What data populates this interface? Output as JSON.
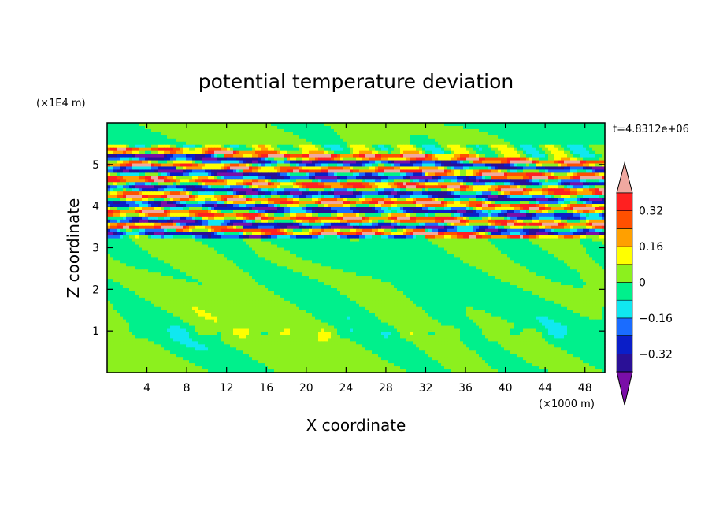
{
  "chart_data": {
    "type": "heatmap",
    "title": "potential temperature deviation",
    "xlabel": "X coordinate",
    "ylabel": "Z coordinate",
    "x_unit_label": "(×1000 m)",
    "y_unit_label": "(×1E4 m)",
    "time_label": "t=4.8312e+06",
    "xlim": [
      0,
      50
    ],
    "ylim": [
      0,
      6
    ],
    "x_ticks": [
      4,
      8,
      12,
      16,
      20,
      24,
      28,
      32,
      36,
      40,
      44,
      48
    ],
    "x_tick_labels": [
      "4",
      "8",
      "12",
      "16",
      "20",
      "24",
      "28",
      "32",
      "36",
      "40",
      "44",
      "48"
    ],
    "y_ticks": [
      1,
      2,
      3,
      4,
      5
    ],
    "y_tick_labels": [
      "1",
      "2",
      "3",
      "4",
      "5"
    ],
    "colorbar": {
      "levels": [
        -0.4,
        -0.32,
        -0.24,
        -0.16,
        -0.08,
        0,
        0.08,
        0.16,
        0.24,
        0.32,
        0.4
      ],
      "tick_values": [
        -0.32,
        -0.16,
        0,
        0.16,
        0.32
      ],
      "tick_labels": [
        "−0.32",
        "−0.16",
        "0",
        "0.16",
        "0.32"
      ],
      "colors": [
        "#7a0ea8",
        "#2a1096",
        "#0a1ec8",
        "#1a6cff",
        "#10e8f0",
        "#00f08c",
        "#8cf01e",
        "#ffff00",
        "#ffa000",
        "#ff5000",
        "#ff2020",
        "#f0a8a0"
      ],
      "extend": "both"
    },
    "bands": [
      {
        "z": 5.35,
        "value": 0.45
      },
      {
        "z": 5.2,
        "value": -0.45
      },
      {
        "z": 5.0,
        "value": 0.45
      },
      {
        "z": 4.85,
        "value": -0.45
      },
      {
        "z": 4.65,
        "value": 0.45
      },
      {
        "z": 4.45,
        "value": -0.45
      },
      {
        "z": 4.25,
        "value": 0.45
      },
      {
        "z": 4.05,
        "value": -0.45
      },
      {
        "z": 3.85,
        "value": 0.45
      },
      {
        "z": 3.65,
        "value": -0.45
      },
      {
        "z": 3.5,
        "value": 0.45
      },
      {
        "z": 3.35,
        "value": -0.4
      }
    ]
  }
}
